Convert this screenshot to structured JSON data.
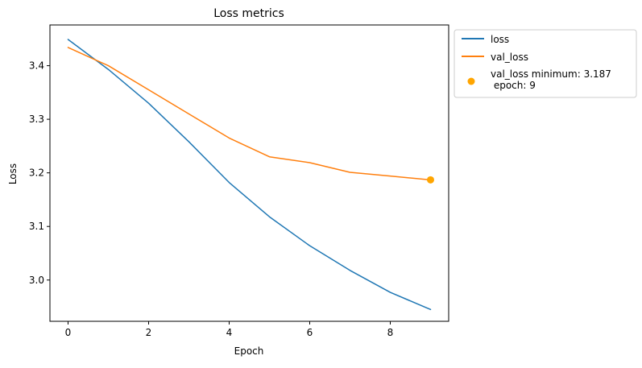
{
  "chart_data": {
    "type": "line",
    "title": "Loss metrics",
    "xlabel": "Epoch",
    "ylabel": "Loss",
    "x": [
      0,
      1,
      2,
      3,
      4,
      5,
      6,
      7,
      8,
      9
    ],
    "xlim": [
      -0.45,
      9.45
    ],
    "ylim": [
      2.923,
      3.476
    ],
    "xticks": [
      0,
      2,
      4,
      6,
      8
    ],
    "yticks": [
      3.0,
      3.1,
      3.2,
      3.3,
      3.4
    ],
    "grid": false,
    "legend_position": "outside-right",
    "series": [
      {
        "name": "loss",
        "color": "#1f77b4",
        "values": [
          3.449,
          3.393,
          3.33,
          3.258,
          3.182,
          3.118,
          3.064,
          3.018,
          2.977,
          2.945
        ]
      },
      {
        "name": "val_loss",
        "color": "#ff7f0e",
        "values": [
          3.434,
          3.4,
          3.355,
          3.31,
          3.265,
          3.23,
          3.219,
          3.201,
          3.194,
          3.187
        ]
      }
    ],
    "marker": {
      "label": "val_loss minimum: 3.187\n epoch: 9",
      "x": 9,
      "y": 3.187,
      "color": "#ffa500"
    }
  }
}
